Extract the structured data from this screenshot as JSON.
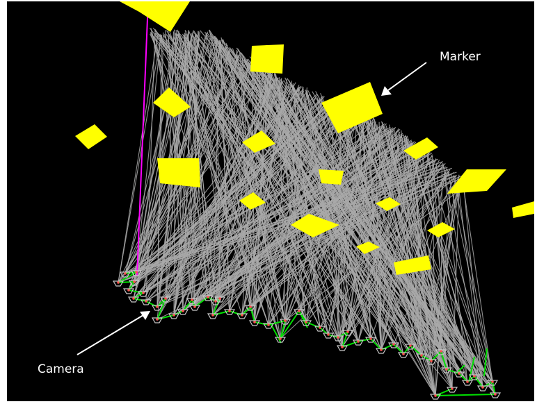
{
  "annotations": {
    "marker_label": "Marker",
    "camera_label": "Camera"
  },
  "colors": {
    "background": "#000000",
    "ray": "#a9a9a9",
    "marker": "#ffff00",
    "camera_path": "#00e000",
    "camera_body": "#c8c8c8",
    "camera_point": "#ff5050",
    "reference_line": "#ff00ff",
    "annotation": "#ffffff"
  }
}
